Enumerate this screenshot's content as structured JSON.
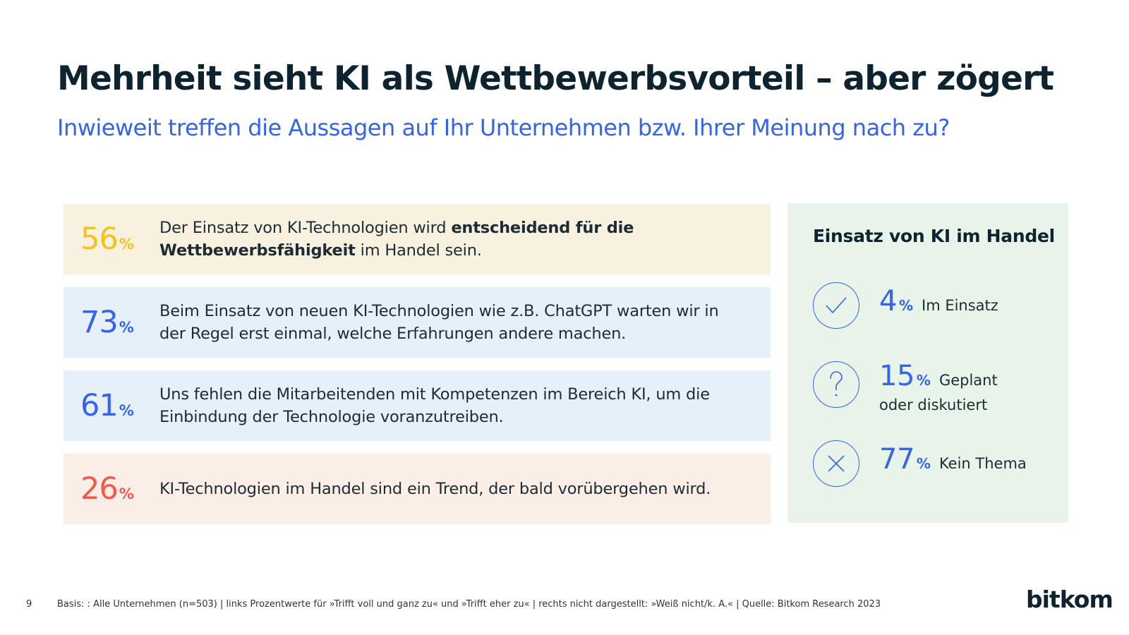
{
  "header": {
    "title": "Mehrheit sieht KI als Wettbewerbsvorteil – aber zögert",
    "subtitle": "Inwieweit treffen die Aussagen auf Ihr Unternehmen bzw. Ihrer Meinung nach zu?"
  },
  "statements": [
    {
      "value": "56",
      "unit": "%",
      "color": "#f5c21b",
      "bg": "#f8f1df",
      "parts": {
        "a": "Der Einsatz von KI-Technologien wird ",
        "b": "entscheidend für die Wettbewerbsfähigkeit",
        "c": " im Handel sein."
      }
    },
    {
      "value": "73",
      "unit": "%",
      "color": "#3564e8",
      "bg": "#e6f0fb",
      "text": "Beim Einsatz von neuen KI-Technologien wie z.B. ChatGPT warten wir in der Regel erst einmal, welche Erfahrungen andere machen."
    },
    {
      "value": "61",
      "unit": "%",
      "color": "#3564e8",
      "bg": "#e6f0fb",
      "text": "Uns fehlen die Mitarbeitenden mit Kompetenzen im Bereich KI, um die Einbindung der Technologie voranzutreiben."
    },
    {
      "value": "26",
      "unit": "%",
      "color": "#f15a4a",
      "bg": "#fbeee6",
      "text": "KI-Technologien im Handel sind ein Trend, der bald vorübergehen wird."
    }
  ],
  "sidebar": {
    "title": "Einsatz von KI im Handel",
    "bg": "#e8f4e9",
    "items": [
      {
        "icon": "check-icon",
        "value": "4",
        "unit": "%",
        "label": "Im Einsatz"
      },
      {
        "icon": "question-icon",
        "value": "15",
        "unit": "%",
        "label": "Geplant",
        "label2": "oder diskutiert"
      },
      {
        "icon": "x-icon",
        "value": "77",
        "unit": "%",
        "label": "Kein Thema"
      }
    ]
  },
  "footer": {
    "page": "9",
    "note": "Basis: : Alle Unternehmen (n=503) | links Prozentwerte für »Trifft voll und ganz zu« und »Trifft eher zu« | rechts nicht dargestellt: »Weiß nicht/k. A.« | Quelle: Bitkom Research 2023",
    "brand": "bitkom"
  }
}
